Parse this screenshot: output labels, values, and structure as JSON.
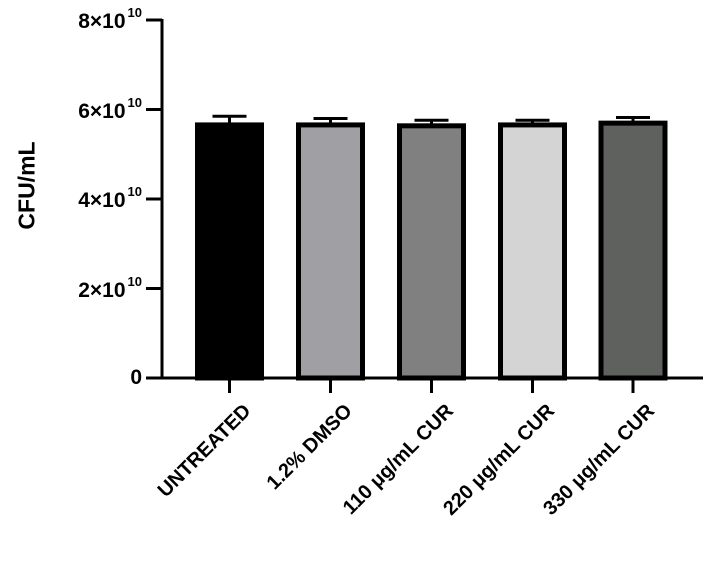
{
  "chart_data": {
    "type": "bar",
    "title": "",
    "xlabel": "",
    "ylabel": "CFU/mL",
    "ylim": [
      0,
      80000000000
    ],
    "yticks": [
      {
        "value": 0,
        "label": "0",
        "exp": ""
      },
      {
        "value": 20000000000,
        "label": "2×10",
        "exp": "10"
      },
      {
        "value": 40000000000,
        "label": "4×10",
        "exp": "10"
      },
      {
        "value": 60000000000,
        "label": "6×10",
        "exp": "10"
      },
      {
        "value": 80000000000,
        "label": "8×10",
        "exp": "10"
      }
    ],
    "categories": [
      "UNTREATED",
      "1.2% DMSO",
      "110 μg/mL CUR",
      "220 μg/mL CUR",
      "330 μg/mL CUR"
    ],
    "values": [
      57000000000,
      57000000000,
      56800000000,
      57000000000,
      57400000000
    ],
    "error": [
      1500000000,
      1000000000,
      800000000,
      600000000,
      800000000
    ],
    "colors": [
      "#000000",
      "#a0a0a4",
      "#808080",
      "#d4d4d4",
      "#5f615f"
    ],
    "grid": false,
    "legend": null
  }
}
